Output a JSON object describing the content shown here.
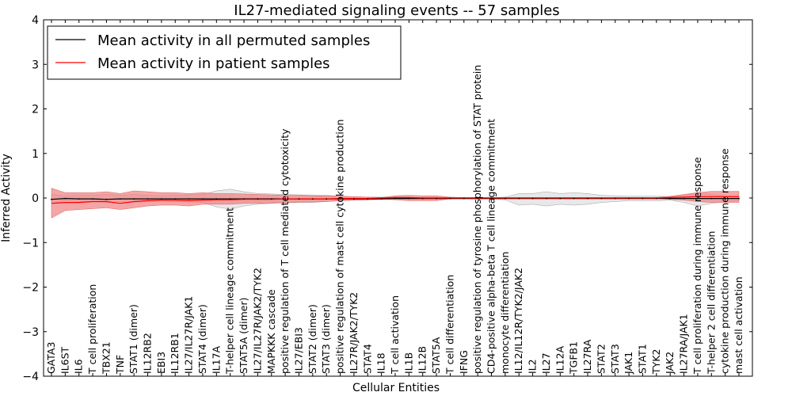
{
  "chart_data": {
    "type": "line",
    "title": "IL27-mediated signaling events -- 57 samples",
    "xlabel": "Cellular Entities",
    "ylabel": "Inferred Activity",
    "ylim": [
      -4,
      4
    ],
    "yticks": [
      -4,
      -3,
      -2,
      -1,
      0,
      1,
      2,
      3,
      4
    ],
    "ytick_labels": [
      "−4",
      "−3",
      "−2",
      "−1",
      "0",
      "1",
      "2",
      "3",
      "4"
    ],
    "grid": false,
    "legend_position": "top-left",
    "categories": [
      "GATA3",
      "IL6ST",
      "IL6",
      "T cell proliferation",
      "TBX21",
      "TNF",
      "STAT1 (dimer)",
      "IL12RB2",
      "EBI3",
      "IL12RB1",
      "IL27/IL27R/JAK1",
      "STAT4 (dimer)",
      "IL17A",
      "T-helper cell lineage commitment",
      "STAT5A (dimer)",
      "IL27/IL27R/JAK2/TYK2",
      "MAPKKK cascade",
      "positive regulation of T cell mediated cytotoxicity",
      "IL27/EBI3",
      "STAT2 (dimer)",
      "STAT3 (dimer)",
      "positive regulation of mast cell cytokine production",
      "IL27R/JAK2/TYK2",
      "STAT4",
      "IL18",
      "T cell activation",
      "IL1B",
      "IL12B",
      "STAT5A",
      "T cell differentiation",
      "IFNG",
      "positive regulation of tyrosine phosphorylation of STAT protein",
      "CD4-positive alpha-beta T cell lineage commitment",
      "monocyte differentiation",
      "IL12/IL12R/TYK2/JAK2",
      "IL2",
      "IL27",
      "IL12A",
      "TGFB1",
      "IL27RA",
      "STAT2",
      "STAT3",
      "JAK1",
      "STAT1",
      "TYK2",
      "JAK2",
      "IL27RA/JAK1",
      "T cell proliferation during immune response",
      "T-helper 2 cell differentiation",
      "cytokine production during immune response",
      "mast cell activation"
    ],
    "series": [
      {
        "name": "Mean activity in all permuted samples",
        "color": "#000000",
        "values": [
          -0.03,
          -0.01,
          -0.02,
          -0.02,
          -0.03,
          -0.02,
          -0.02,
          -0.02,
          -0.02,
          -0.02,
          -0.02,
          -0.02,
          -0.02,
          -0.02,
          -0.02,
          -0.02,
          -0.02,
          -0.02,
          -0.02,
          -0.02,
          -0.02,
          -0.02,
          -0.02,
          -0.02,
          -0.02,
          -0.01,
          -0.01,
          -0.01,
          -0.01,
          -0.01,
          -0.01,
          -0.01,
          -0.01,
          -0.01,
          -0.01,
          -0.01,
          -0.01,
          -0.01,
          -0.01,
          -0.01,
          -0.01,
          -0.01,
          -0.01,
          -0.01,
          -0.01,
          -0.01,
          -0.01,
          -0.01,
          -0.01,
          -0.01,
          -0.01
        ],
        "band_lower": [
          -0.12,
          -0.06,
          -0.08,
          -0.08,
          -0.1,
          -0.08,
          -0.1,
          -0.08,
          -0.06,
          -0.08,
          -0.09,
          -0.1,
          -0.2,
          -0.25,
          -0.18,
          -0.14,
          -0.12,
          -0.11,
          -0.1,
          -0.1,
          -0.08,
          -0.06,
          -0.05,
          -0.04,
          -0.03,
          -0.02,
          -0.02,
          -0.02,
          -0.02,
          -0.02,
          -0.02,
          -0.02,
          -0.02,
          -0.04,
          -0.16,
          -0.14,
          -0.18,
          -0.14,
          -0.16,
          -0.14,
          -0.1,
          -0.08,
          -0.06,
          -0.06,
          -0.06,
          -0.05,
          -0.1,
          -0.18,
          -0.12,
          -0.08,
          -0.06
        ],
        "band_upper": [
          0.08,
          0.05,
          0.06,
          0.06,
          0.08,
          0.06,
          0.08,
          0.06,
          0.05,
          0.06,
          0.07,
          0.08,
          0.16,
          0.2,
          0.14,
          0.1,
          0.09,
          0.08,
          0.07,
          0.07,
          0.06,
          0.04,
          0.03,
          0.02,
          0.02,
          0.01,
          0.01,
          0.01,
          0.01,
          0.01,
          0.01,
          0.01,
          0.01,
          0.02,
          0.1,
          0.1,
          0.14,
          0.1,
          0.12,
          0.1,
          0.06,
          0.05,
          0.04,
          0.04,
          0.04,
          0.03,
          0.06,
          0.12,
          0.08,
          0.05,
          0.04
        ]
      },
      {
        "name": "Mean activity in patient samples",
        "color": "#ff0000",
        "values": [
          -0.12,
          -0.1,
          -0.1,
          -0.08,
          -0.08,
          -0.12,
          -0.08,
          -0.06,
          -0.05,
          -0.05,
          -0.06,
          -0.05,
          -0.04,
          -0.04,
          -0.03,
          -0.03,
          -0.03,
          -0.02,
          -0.02,
          -0.02,
          -0.02,
          -0.01,
          -0.01,
          -0.01,
          0.0,
          0.01,
          0.01,
          0.0,
          0.0,
          0.0,
          0.0,
          0.0,
          0.0,
          0.0,
          0.0,
          0.0,
          0.0,
          0.0,
          0.0,
          0.0,
          0.0,
          0.0,
          0.0,
          0.0,
          0.0,
          0.01,
          0.02,
          0.03,
          0.03,
          0.03,
          0.03
        ],
        "band_lower": [
          -0.45,
          -0.28,
          -0.26,
          -0.24,
          -0.22,
          -0.26,
          -0.22,
          -0.18,
          -0.16,
          -0.16,
          -0.18,
          -0.14,
          -0.14,
          -0.14,
          -0.12,
          -0.12,
          -0.11,
          -0.1,
          -0.09,
          -0.09,
          -0.08,
          -0.06,
          -0.05,
          -0.04,
          -0.02,
          -0.04,
          -0.06,
          -0.06,
          -0.06,
          -0.02,
          -0.01,
          -0.01,
          -0.01,
          -0.01,
          -0.01,
          -0.01,
          -0.01,
          -0.01,
          -0.01,
          -0.01,
          -0.01,
          -0.01,
          -0.01,
          -0.01,
          -0.01,
          -0.03,
          -0.05,
          -0.08,
          -0.1,
          -0.1,
          -0.1
        ],
        "band_upper": [
          0.22,
          0.12,
          0.12,
          0.12,
          0.14,
          0.1,
          0.16,
          0.14,
          0.12,
          0.12,
          0.1,
          0.12,
          0.1,
          0.1,
          0.09,
          0.08,
          0.07,
          0.06,
          0.06,
          0.05,
          0.05,
          0.04,
          0.03,
          0.02,
          0.01,
          0.05,
          0.06,
          0.05,
          0.05,
          0.02,
          0.01,
          0.01,
          0.01,
          0.01,
          0.01,
          0.01,
          0.01,
          0.01,
          0.01,
          0.01,
          0.01,
          0.01,
          0.01,
          0.01,
          0.01,
          0.04,
          0.08,
          0.12,
          0.15,
          0.15,
          0.15
        ]
      }
    ]
  }
}
